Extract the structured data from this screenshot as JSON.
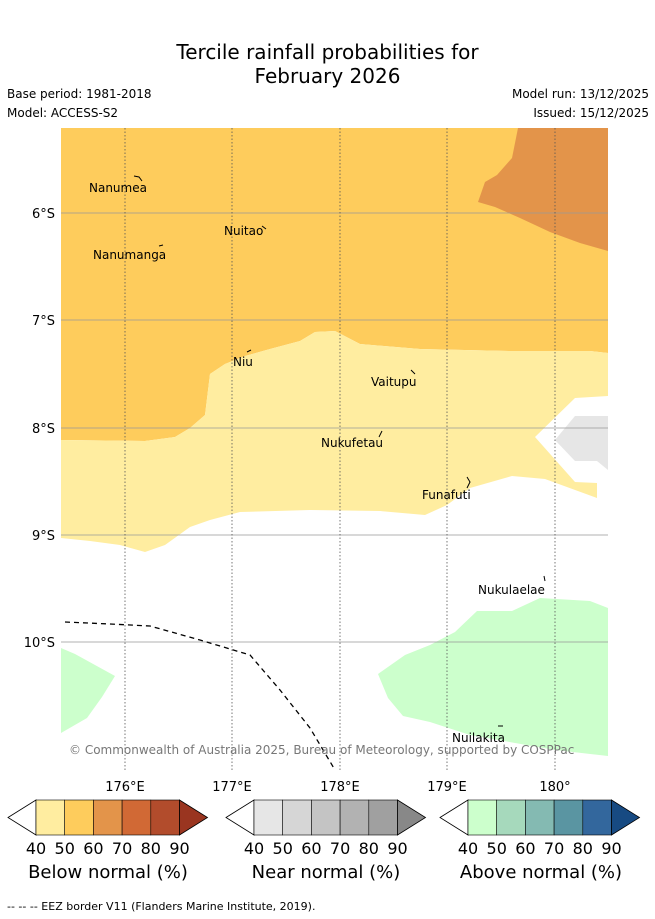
{
  "title": {
    "line1": "Tercile rainfall probabilities for",
    "line2": "February 2026"
  },
  "meta": {
    "base_period": "Base period: 1981-2018",
    "model": "Model: ACCESS-S2",
    "model_run": "Model run: 13/12/2025",
    "issued": "Issued: 15/12/2025"
  },
  "axes": {
    "lat_labels": [
      "6°S",
      "7°S",
      "8°S",
      "9°S",
      "10°S"
    ],
    "lon_labels": [
      "176°E",
      "177°E",
      "178°E",
      "179°E",
      "180°"
    ]
  },
  "places": [
    "Nanumea",
    "Nuitao",
    "Nanumanga",
    "Niu",
    "Vaitupu",
    "Nukufetau",
    "Funafuti",
    "Nukulaelae",
    "Nuilakita"
  ],
  "copyright": "© Commonwealth of Australia 2025, Bureau of Meteorology, supported by COSPPac",
  "colorbars": [
    {
      "label": "Below normal (%)",
      "ticks": [
        "40",
        "50",
        "60",
        "70",
        "80",
        "90"
      ],
      "colors": [
        "#ffffff",
        "#ffeda0",
        "#fecc5c",
        "#e3944a",
        "#d16935",
        "#b24c2c",
        "#9a3520"
      ]
    },
    {
      "label": "Near normal (%)",
      "ticks": [
        "40",
        "50",
        "60",
        "70",
        "80",
        "90"
      ],
      "colors": [
        "#ffffff",
        "#e6e6e6",
        "#d6d6d6",
        "#c4c4c4",
        "#b2b2b2",
        "#a0a0a0",
        "#888888"
      ]
    },
    {
      "label": "Above normal (%)",
      "ticks": [
        "40",
        "50",
        "60",
        "70",
        "80",
        "90"
      ],
      "colors": [
        "#ffffff",
        "#ccffcc",
        "#a6d9bc",
        "#84bab2",
        "#5a95a2",
        "#33679d",
        "#174a82"
      ]
    }
  ],
  "footer": "--  --  -- EEZ border V11 (Flanders Marine Institute, 2019)."
}
